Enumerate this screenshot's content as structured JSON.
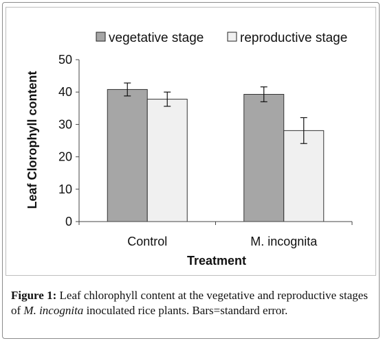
{
  "chart_data": {
    "type": "bar",
    "categories": [
      "Control",
      "M. incognita"
    ],
    "series": [
      {
        "name": "vegetative stage",
        "values": [
          40.8,
          39.3
        ],
        "errors": [
          2.0,
          2.3
        ],
        "color": "#a6a6a6"
      },
      {
        "name": "reproductive stage",
        "values": [
          37.8,
          28.1
        ],
        "errors": [
          2.2,
          4.0
        ],
        "color": "#f0f0f0"
      }
    ],
    "xlabel": "Treatment",
    "ylabel": "Leaf Clorophyll content",
    "ylim": [
      0,
      50
    ],
    "yticks": [
      "0",
      "10",
      "20",
      "30",
      "40",
      "50"
    ],
    "legend_position": "top",
    "grid": false
  },
  "caption": {
    "lead": "Figure 1:",
    "part1": " Leaf chlorophyll content at the vegetative and reproductive stages of ",
    "italic": "M. incognita",
    "part2": " inoculated rice plants. Bars=standard error."
  }
}
